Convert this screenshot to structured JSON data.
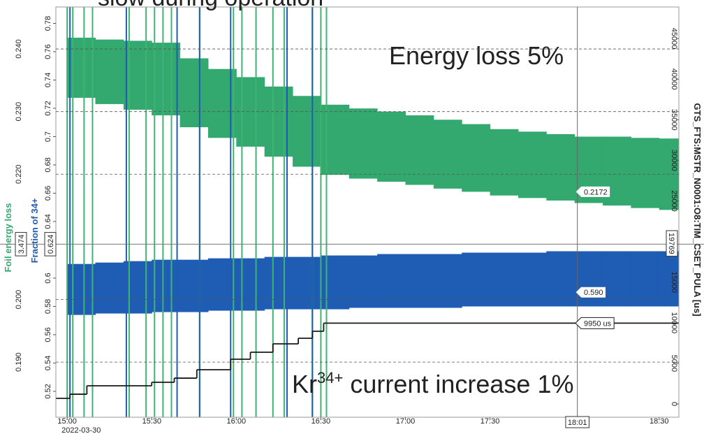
{
  "title": "slow during operation",
  "chart_data": {
    "type": "band-timeseries",
    "annotations": [
      "Energy loss 5%"
    ],
    "annotation2": {
      "parts": [
        "Kr",
        "34+",
        " current increase 1%"
      ]
    },
    "y_title": "Foil energy loss",
    "y_inner_title": "Fraction of 34+",
    "y2_title": "GTS_FTS:MSTR_N0001:O8:TIM_CSET_PULA [us]",
    "xlim": [
      "14:56",
      "18:37"
    ],
    "xticks": [
      "15:00",
      "15:30",
      "16:00",
      "16:30",
      "17:00",
      "17:30",
      "18:30"
    ],
    "xtick_sublabel": "2022-03-30",
    "ylim": [
      0.1812,
      0.2467
    ],
    "yticks": [
      {
        "value": 0.19,
        "label": "0.190"
      },
      {
        "value": 0.2,
        "label": "0.200"
      },
      {
        "value": 0.22,
        "label": "0.220"
      },
      {
        "value": 0.23,
        "label": "0.230"
      },
      {
        "value": 0.24,
        "label": "0.240"
      }
    ],
    "y_inner_lim": [
      0.5017,
      0.7916
    ],
    "y_inner_ticks": [
      0.52,
      0.54,
      0.56,
      0.58,
      0.6,
      0.64,
      0.66,
      0.68,
      0.7,
      0.72,
      0.74,
      0.76,
      0.78
    ],
    "y2lim": [
      -1635,
      48881
    ],
    "y2ticks": [
      0,
      5000,
      10000,
      15000,
      25000,
      30000,
      35000,
      40000,
      45000
    ],
    "grid": true,
    "x": [
      "15:00",
      "15:10",
      "15:20",
      "15:30",
      "15:40",
      "15:50",
      "16:00",
      "16:10",
      "16:20",
      "16:30",
      "16:40",
      "16:50",
      "17:00",
      "17:10",
      "17:20",
      "17:30",
      "17:40",
      "17:50",
      "18:00",
      "18:10",
      "18:20",
      "18:30"
    ],
    "bands": [
      {
        "color": "#33a96f",
        "axis": "y",
        "upper": [
          0.2418,
          0.2415,
          0.2413,
          0.241,
          0.2385,
          0.2368,
          0.2355,
          0.234,
          0.2325,
          0.2311,
          0.2305,
          0.23,
          0.2294,
          0.2287,
          0.228,
          0.2272,
          0.2268,
          0.2264,
          0.226,
          0.226,
          0.2258,
          0.2257
        ],
        "lower": [
          0.2322,
          0.2312,
          0.2303,
          0.2294,
          0.2275,
          0.2258,
          0.2244,
          0.2228,
          0.2212,
          0.2199,
          0.2193,
          0.2188,
          0.2183,
          0.2177,
          0.2172,
          0.2166,
          0.2162,
          0.2158,
          0.2154,
          0.215,
          0.2146,
          0.2143
        ]
      },
      {
        "color": "#1f5cb4",
        "axis": "y_inner",
        "upper": [
          0.61,
          0.611,
          0.612,
          0.613,
          0.613,
          0.614,
          0.614,
          0.615,
          0.615,
          0.616,
          0.616,
          0.617,
          0.617,
          0.617,
          0.618,
          0.618,
          0.618,
          0.619,
          0.619,
          0.619,
          0.619,
          0.619
        ],
        "lower": [
          0.574,
          0.575,
          0.575,
          0.576,
          0.576,
          0.577,
          0.577,
          0.578,
          0.578,
          0.578,
          0.579,
          0.579,
          0.579,
          0.579,
          0.58,
          0.58,
          0.58,
          0.58,
          0.58,
          0.58,
          0.58,
          0.58
        ]
      }
    ],
    "event_lines": [
      {
        "color": "#3fb373",
        "x": [
          "15:00",
          "15:02",
          "15:06",
          "15:09",
          "15:22",
          "15:28",
          "15:31",
          "15:34",
          "15:37",
          "15:47",
          "15:59",
          "16:02",
          "16:07",
          "16:13",
          "16:17",
          "16:27",
          "16:30",
          "16:32"
        ]
      },
      {
        "color": "#1f5cb4",
        "x": [
          "15:01",
          "15:21",
          "15:39",
          "15:47",
          "15:58",
          "16:18",
          "16:27"
        ]
      }
    ],
    "step": {
      "color": "#1a1a1a",
      "axis": "y2",
      "x": [
        "14:56",
        "15:01",
        "15:07",
        "15:30",
        "15:38",
        "15:46",
        "15:58",
        "16:05",
        "16:13",
        "16:22",
        "16:27",
        "16:31"
      ],
      "values": [
        690,
        1200,
        2240,
        2670,
        3180,
        4220,
        5510,
        6370,
        7400,
        8090,
        8950,
        9950
      ],
      "end": "18:37"
    },
    "value_tags": [
      {
        "value": 0.2172,
        "label": "0.2172",
        "axis": "y",
        "color": "#33a96f"
      },
      {
        "value": 0.59,
        "label": "0.590",
        "axis": "y_inner",
        "color": "#1f5cb4"
      },
      {
        "value": 9950,
        "label": "9950 us",
        "axis": "y2",
        "color": "#1a1a1a"
      }
    ],
    "cursor": {
      "x": "18:01",
      "y_inner": {
        "value": 0.624,
        "label": "0.624"
      },
      "y_label": "3.474",
      "y2": {
        "value": 19769,
        "label": "19769"
      }
    }
  }
}
